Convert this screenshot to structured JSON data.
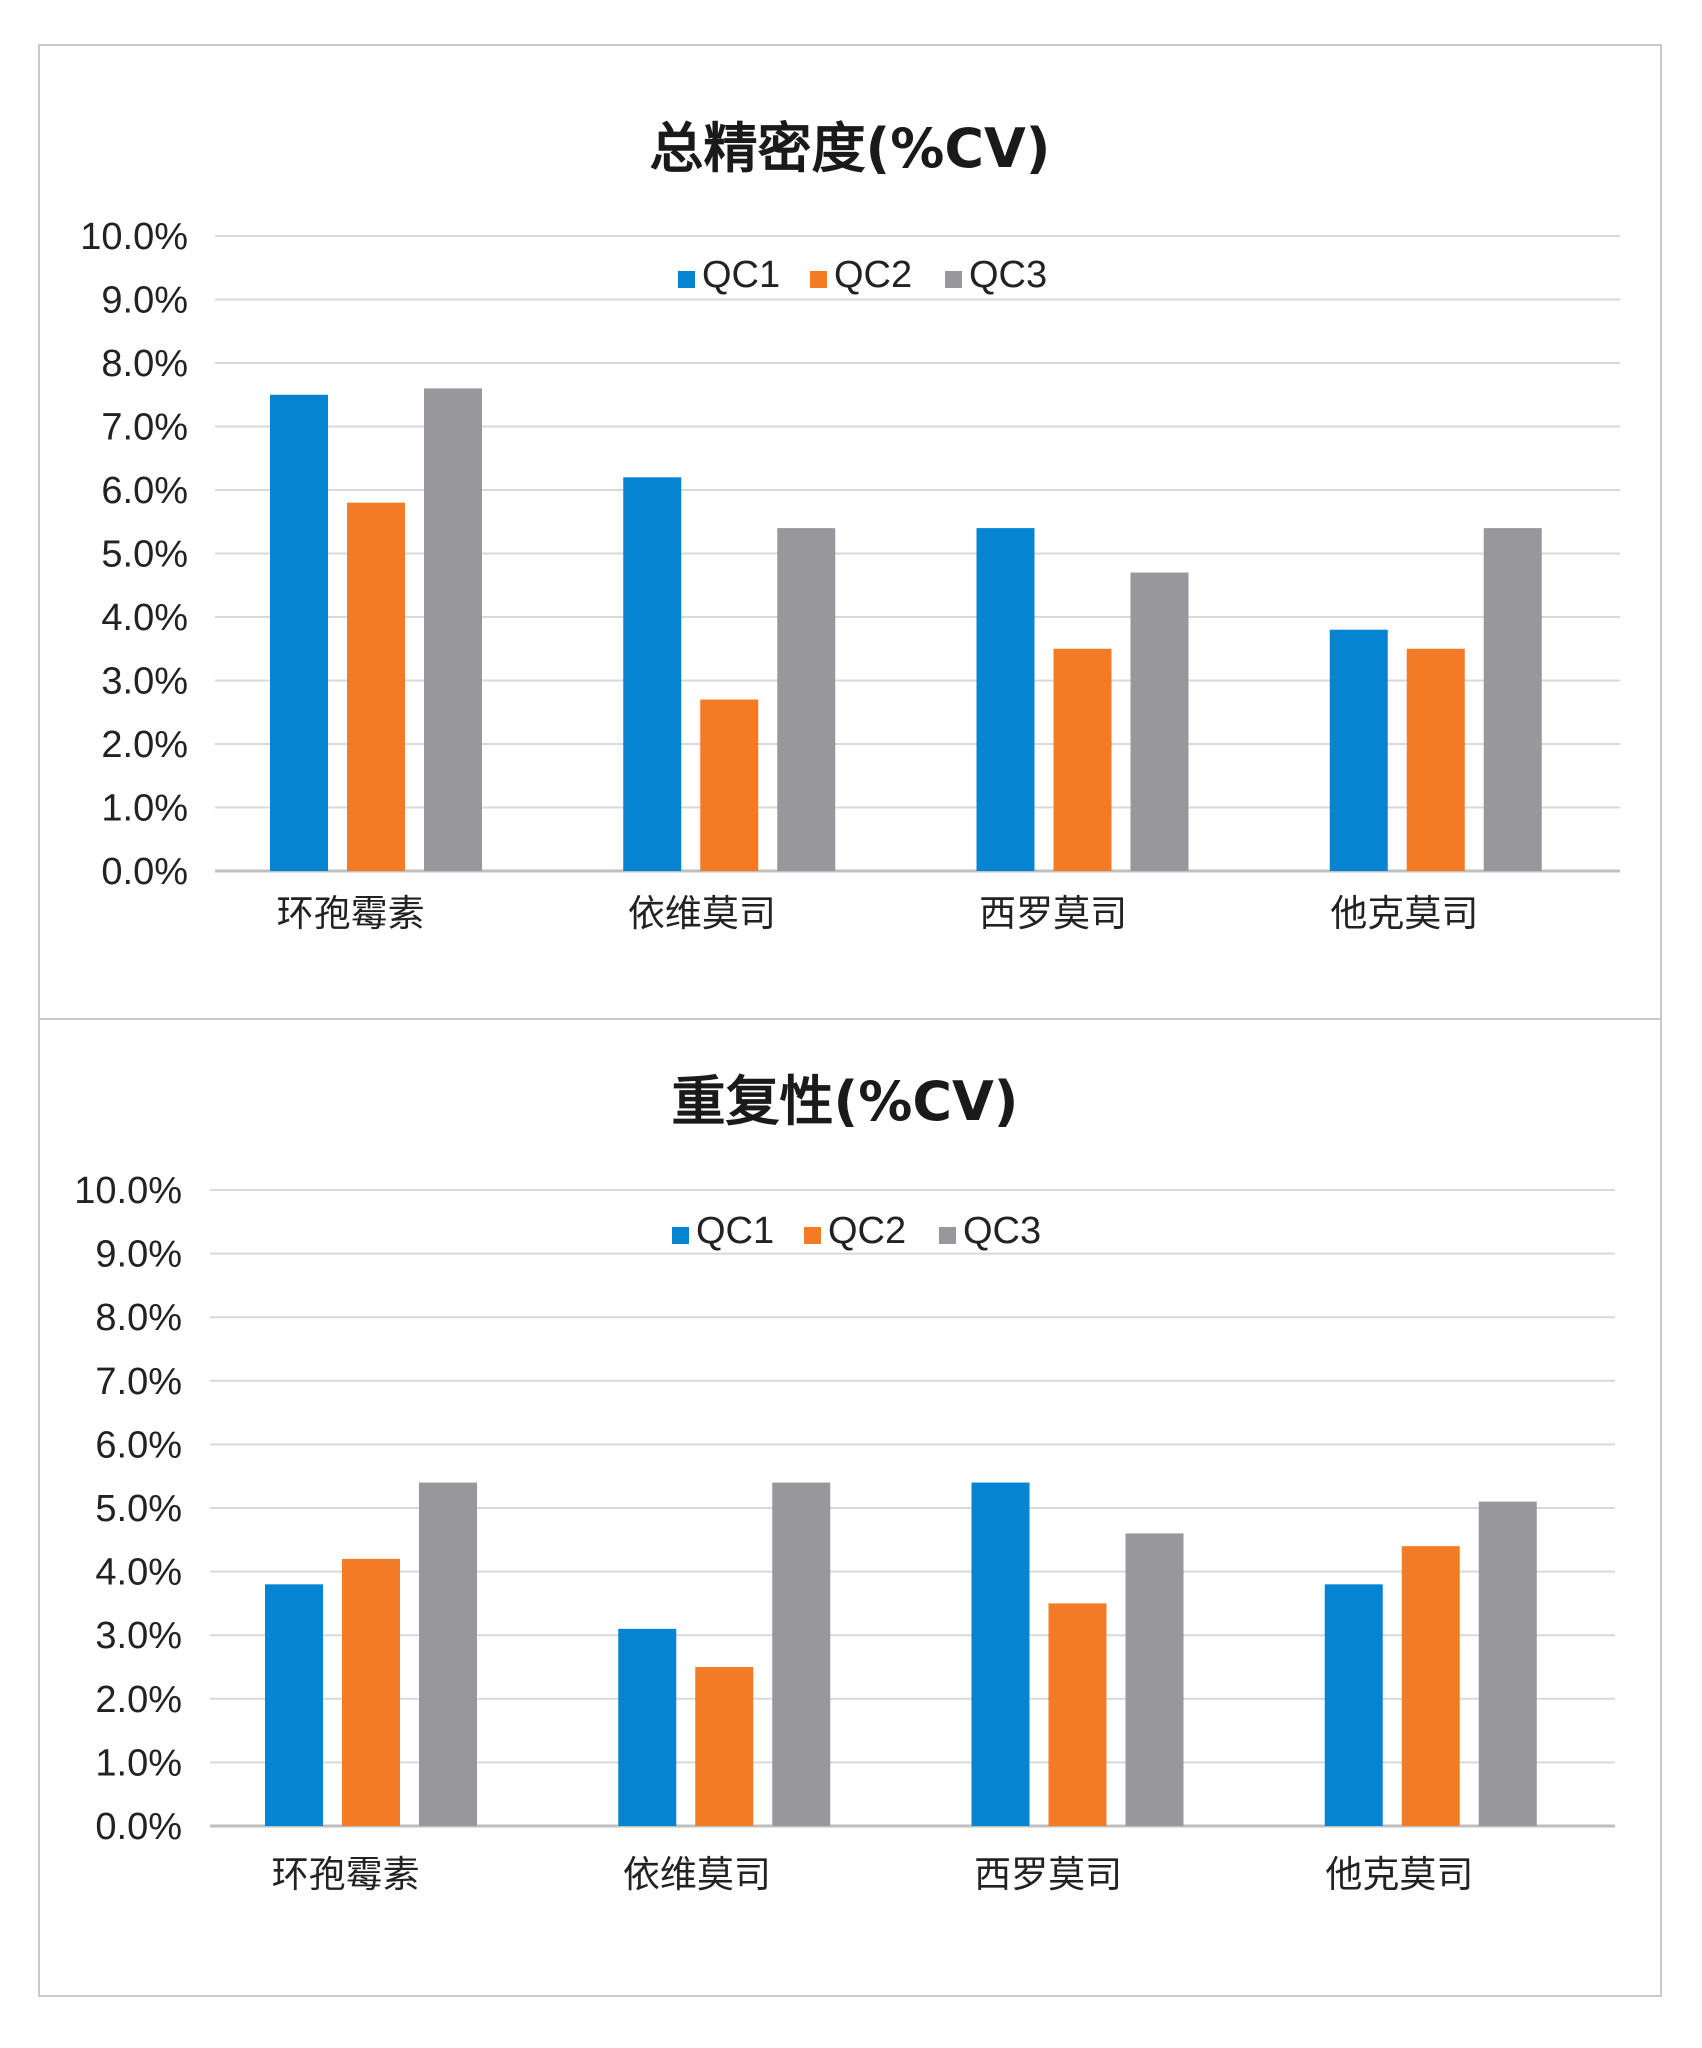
{
  "colors": {
    "QC1": "#0585d1",
    "QC2": "#f47b26",
    "QC3": "#97979c",
    "grid": "#d9d9d9",
    "axis": "#bfbfbf"
  },
  "chart_data": [
    {
      "type": "bar",
      "title": "总精密度(%CV)",
      "categories": [
        "环孢霉素",
        "依维莫司",
        "西罗莫司",
        "他克莫司"
      ],
      "series": [
        {
          "name": "QC1",
          "values": [
            7.5,
            6.2,
            5.4,
            3.8
          ]
        },
        {
          "name": "QC2",
          "values": [
            5.8,
            2.7,
            3.5,
            3.5
          ]
        },
        {
          "name": "QC3",
          "values": [
            7.6,
            5.4,
            4.7,
            5.4
          ]
        }
      ],
      "ylim": [
        0,
        10
      ],
      "y_ticks": [
        "0.0%",
        "1.0%",
        "2.0%",
        "3.0%",
        "4.0%",
        "5.0%",
        "6.0%",
        "7.0%",
        "8.0%",
        "9.0%",
        "10.0%"
      ],
      "grid": true,
      "legend": "top-center"
    },
    {
      "type": "bar",
      "title": "重复性(%CV)",
      "categories": [
        "环孢霉素",
        "依维莫司",
        "西罗莫司",
        "他克莫司"
      ],
      "series": [
        {
          "name": "QC1",
          "values": [
            3.8,
            3.1,
            5.4,
            3.8
          ]
        },
        {
          "name": "QC2",
          "values": [
            4.2,
            2.5,
            3.5,
            4.4
          ]
        },
        {
          "name": "QC3",
          "values": [
            5.4,
            5.4,
            4.6,
            5.1
          ]
        }
      ],
      "ylim": [
        0,
        10
      ],
      "y_ticks": [
        "0.0%",
        "1.0%",
        "2.0%",
        "3.0%",
        "4.0%",
        "5.0%",
        "6.0%",
        "7.0%",
        "8.0%",
        "9.0%",
        "10.0%"
      ],
      "grid": true,
      "legend": "top-center"
    }
  ]
}
